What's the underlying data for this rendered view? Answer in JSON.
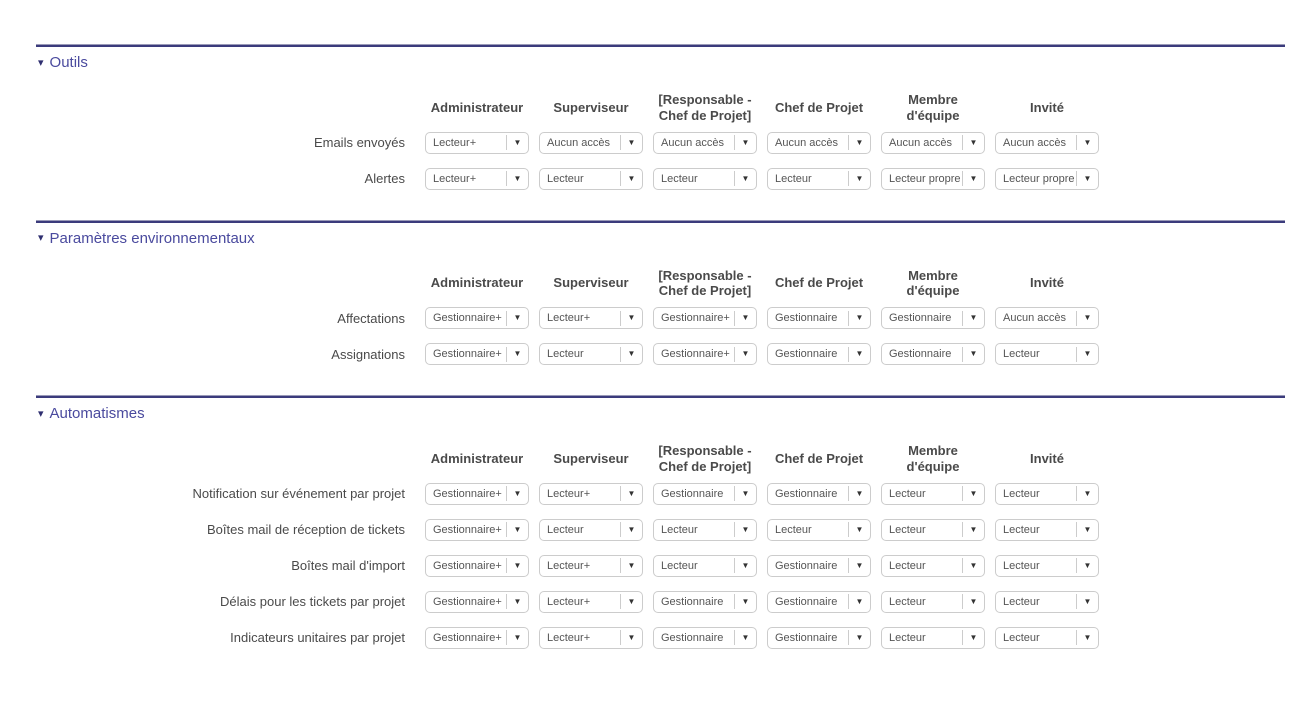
{
  "columns": [
    {
      "id": "administrateur",
      "label": "Administrateur"
    },
    {
      "id": "superviseur",
      "label": "Superviseur"
    },
    {
      "id": "responsable-chef-de-projet",
      "label": "[Responsable - Chef de Projet]"
    },
    {
      "id": "chef-de-projet",
      "label": "Chef de Projet"
    },
    {
      "id": "membre-d-equipe",
      "label": "Membre d'équipe"
    },
    {
      "id": "invite",
      "label": "Invité"
    }
  ],
  "icons": {
    "section_toggle": "▾",
    "dropdown_arrow": "▼"
  },
  "colors": {
    "section_title": "#4a4a9e",
    "divider": "#3b3b7c",
    "column_header_text": "#4a4a4a",
    "dropdown_border": "#cccccc",
    "dropdown_text": "#555555"
  },
  "sections": [
    {
      "id": "outils",
      "title": "Outils",
      "rows": [
        {
          "label": "Emails envoyés",
          "values": [
            "Lecteur+",
            "Aucun accès",
            "Aucun accès",
            "Aucun accès",
            "Aucun accès",
            "Aucun accès"
          ]
        },
        {
          "label": "Alertes",
          "values": [
            "Lecteur+",
            "Lecteur",
            "Lecteur",
            "Lecteur",
            "Lecteur propre",
            "Lecteur propre"
          ]
        }
      ]
    },
    {
      "id": "parametres-environnementaux",
      "title": "Paramètres environnementaux",
      "rows": [
        {
          "label": "Affectations",
          "values": [
            "Gestionnaire+",
            "Lecteur+",
            "Gestionnaire+",
            "Gestionnaire",
            "Gestionnaire",
            "Aucun accès"
          ]
        },
        {
          "label": "Assignations",
          "values": [
            "Gestionnaire+",
            "Lecteur",
            "Gestionnaire+",
            "Gestionnaire",
            "Gestionnaire",
            "Lecteur"
          ]
        }
      ]
    },
    {
      "id": "automatismes",
      "title": "Automatismes",
      "rows": [
        {
          "label": "Notification sur événement par projet",
          "values": [
            "Gestionnaire+",
            "Lecteur+",
            "Gestionnaire",
            "Gestionnaire",
            "Lecteur",
            "Lecteur"
          ]
        },
        {
          "label": "Boîtes mail de réception de tickets",
          "values": [
            "Gestionnaire+",
            "Lecteur",
            "Lecteur",
            "Lecteur",
            "Lecteur",
            "Lecteur"
          ]
        },
        {
          "label": "Boîtes mail d'import",
          "values": [
            "Gestionnaire+",
            "Lecteur+",
            "Lecteur",
            "Gestionnaire",
            "Lecteur",
            "Lecteur"
          ]
        },
        {
          "label": "Délais pour les tickets par projet",
          "values": [
            "Gestionnaire+",
            "Lecteur+",
            "Gestionnaire",
            "Gestionnaire",
            "Lecteur",
            "Lecteur"
          ]
        },
        {
          "label": "Indicateurs unitaires par projet",
          "values": [
            "Gestionnaire+",
            "Lecteur+",
            "Gestionnaire",
            "Gestionnaire",
            "Lecteur",
            "Lecteur"
          ]
        }
      ]
    }
  ]
}
